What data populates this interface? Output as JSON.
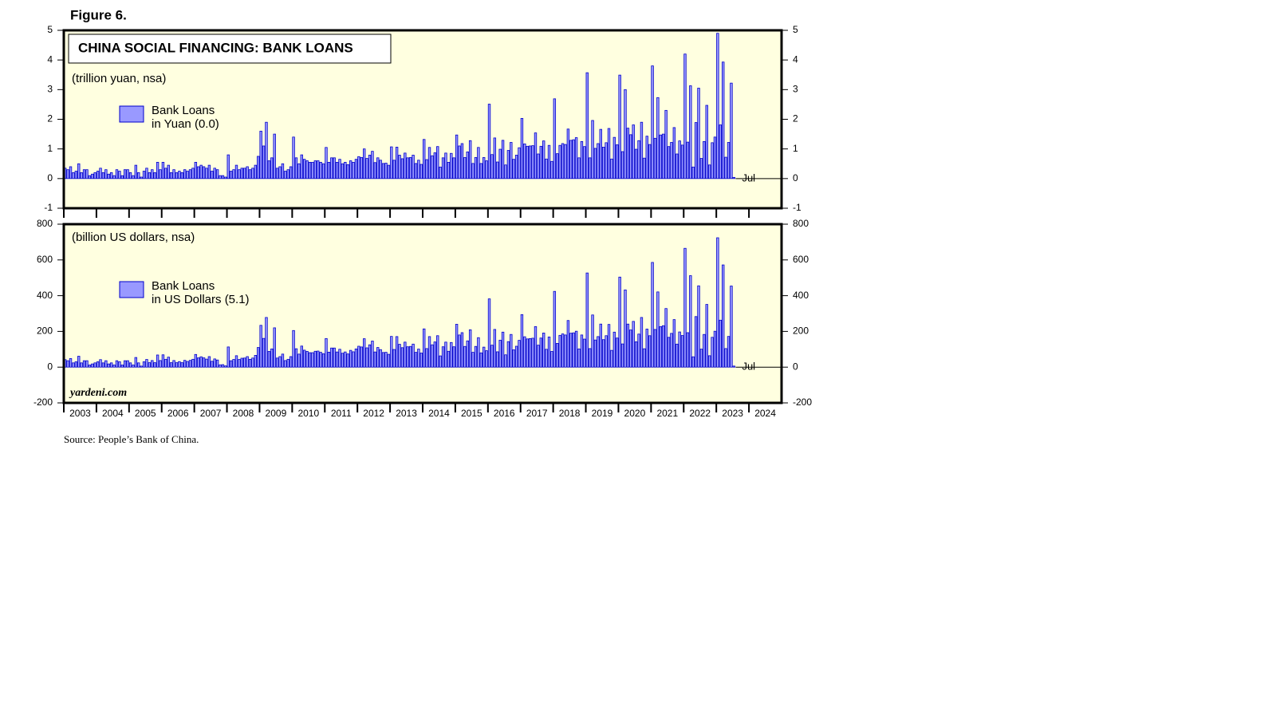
{
  "figure": "Figure 6.",
  "source": "Source: People’s Bank of China.",
  "chart_data": [
    {
      "type": "bar",
      "title": "CHINA SOCIAL FINANCING: BANK LOANS",
      "subtitle": "(trillion yuan, nsa)",
      "annotation": "Jul",
      "xlim": [
        "2003-01",
        "2024-12"
      ],
      "ylim": [
        -1,
        5
      ],
      "yticks": [
        -1,
        0,
        1,
        2,
        3,
        4,
        5
      ],
      "x": [
        "2003-01",
        "2003-02",
        "2003-03",
        "2003-04",
        "2003-05",
        "2003-06",
        "2003-07",
        "2003-08",
        "2003-09",
        "2003-10",
        "2003-11",
        "2003-12",
        "2004-01",
        "2004-02",
        "2004-03",
        "2004-04",
        "2004-05",
        "2004-06",
        "2004-07",
        "2004-08",
        "2004-09",
        "2004-10",
        "2004-11",
        "2004-12",
        "2005-01",
        "2005-02",
        "2005-03",
        "2005-04",
        "2005-05",
        "2005-06",
        "2005-07",
        "2005-08",
        "2005-09",
        "2005-10",
        "2005-11",
        "2005-12",
        "2006-01",
        "2006-02",
        "2006-03",
        "2006-04",
        "2006-05",
        "2006-06",
        "2006-07",
        "2006-08",
        "2006-09",
        "2006-10",
        "2006-11",
        "2006-12",
        "2007-01",
        "2007-02",
        "2007-03",
        "2007-04",
        "2007-05",
        "2007-06",
        "2007-07",
        "2007-08",
        "2007-09",
        "2007-10",
        "2007-11",
        "2007-12",
        "2008-01",
        "2008-02",
        "2008-03",
        "2008-04",
        "2008-05",
        "2008-06",
        "2008-07",
        "2008-08",
        "2008-09",
        "2008-10",
        "2008-11",
        "2008-12",
        "2009-01",
        "2009-02",
        "2009-03",
        "2009-04",
        "2009-05",
        "2009-06",
        "2009-07",
        "2009-08",
        "2009-09",
        "2009-10",
        "2009-11",
        "2009-12",
        "2010-01",
        "2010-02",
        "2010-03",
        "2010-04",
        "2010-05",
        "2010-06",
        "2010-07",
        "2010-08",
        "2010-09",
        "2010-10",
        "2010-11",
        "2010-12",
        "2011-01",
        "2011-02",
        "2011-03",
        "2011-04",
        "2011-05",
        "2011-06",
        "2011-07",
        "2011-08",
        "2011-09",
        "2011-10",
        "2011-11",
        "2011-12",
        "2012-01",
        "2012-02",
        "2012-03",
        "2012-04",
        "2012-05",
        "2012-06",
        "2012-07",
        "2012-08",
        "2012-09",
        "2012-10",
        "2012-11",
        "2012-12",
        "2013-01",
        "2013-02",
        "2013-03",
        "2013-04",
        "2013-05",
        "2013-06",
        "2013-07",
        "2013-08",
        "2013-09",
        "2013-10",
        "2013-11",
        "2013-12",
        "2014-01",
        "2014-02",
        "2014-03",
        "2014-04",
        "2014-05",
        "2014-06",
        "2014-07",
        "2014-08",
        "2014-09",
        "2014-10",
        "2014-11",
        "2014-12",
        "2015-01",
        "2015-02",
        "2015-03",
        "2015-04",
        "2015-05",
        "2015-06",
        "2015-07",
        "2015-08",
        "2015-09",
        "2015-10",
        "2015-11",
        "2015-12",
        "2016-01",
        "2016-02",
        "2016-03",
        "2016-04",
        "2016-05",
        "2016-06",
        "2016-07",
        "2016-08",
        "2016-09",
        "2016-10",
        "2016-11",
        "2016-12",
        "2017-01",
        "2017-02",
        "2017-03",
        "2017-04",
        "2017-05",
        "2017-06",
        "2017-07",
        "2017-08",
        "2017-09",
        "2017-10",
        "2017-11",
        "2017-12",
        "2018-01",
        "2018-02",
        "2018-03",
        "2018-04",
        "2018-05",
        "2018-06",
        "2018-07",
        "2018-08",
        "2018-09",
        "2018-10",
        "2018-11",
        "2018-12",
        "2019-01",
        "2019-02",
        "2019-03",
        "2019-04",
        "2019-05",
        "2019-06",
        "2019-07",
        "2019-08",
        "2019-09",
        "2019-10",
        "2019-11",
        "2019-12",
        "2020-01",
        "2020-02",
        "2020-03",
        "2020-04",
        "2020-05",
        "2020-06",
        "2020-07",
        "2020-08",
        "2020-09",
        "2020-10",
        "2020-11",
        "2020-12",
        "2021-01",
        "2021-02",
        "2021-03",
        "2021-04",
        "2021-05",
        "2021-06",
        "2021-07",
        "2021-08",
        "2021-09",
        "2021-10",
        "2021-11",
        "2021-12",
        "2022-01",
        "2022-02",
        "2022-03",
        "2022-04",
        "2022-05",
        "2022-06",
        "2022-07",
        "2022-08",
        "2022-09",
        "2022-10",
        "2022-11",
        "2022-12",
        "2023-01",
        "2023-02",
        "2023-03",
        "2023-04",
        "2023-05",
        "2023-06",
        "2023-07"
      ],
      "series": [
        {
          "name": "Bank Loans\nin Yuan (0.0)",
          "color": "#9999ff",
          "edgecolor": "#0000cc",
          "values": [
            0.35,
            0.3,
            0.4,
            0.2,
            0.25,
            0.5,
            0.2,
            0.3,
            0.3,
            0.1,
            0.15,
            0.2,
            0.25,
            0.35,
            0.2,
            0.3,
            0.15,
            0.2,
            0.1,
            0.3,
            0.25,
            0.1,
            0.3,
            0.3,
            0.2,
            0.1,
            0.45,
            0.2,
            0.05,
            0.25,
            0.35,
            0.2,
            0.3,
            0.2,
            0.55,
            0.3,
            0.55,
            0.35,
            0.45,
            0.2,
            0.3,
            0.2,
            0.25,
            0.2,
            0.3,
            0.25,
            0.3,
            0.35,
            0.55,
            0.4,
            0.45,
            0.4,
            0.35,
            0.45,
            0.25,
            0.35,
            0.3,
            0.1,
            0.1,
            0.05,
            0.8,
            0.25,
            0.3,
            0.45,
            0.3,
            0.35,
            0.35,
            0.4,
            0.3,
            0.35,
            0.45,
            0.75,
            1.6,
            1.1,
            1.9,
            0.6,
            0.7,
            1.5,
            0.35,
            0.4,
            0.5,
            0.25,
            0.3,
            0.4,
            1.4,
            0.7,
            0.5,
            0.8,
            0.65,
            0.6,
            0.55,
            0.55,
            0.6,
            0.6,
            0.55,
            0.5,
            1.05,
            0.55,
            0.7,
            0.7,
            0.55,
            0.65,
            0.5,
            0.55,
            0.47,
            0.6,
            0.55,
            0.65,
            0.74,
            0.71,
            1.0,
            0.68,
            0.79,
            0.92,
            0.54,
            0.7,
            0.62,
            0.51,
            0.52,
            0.45,
            1.07,
            0.62,
            1.06,
            0.79,
            0.67,
            0.86,
            0.7,
            0.71,
            0.79,
            0.51,
            0.62,
            0.48,
            1.32,
            0.64,
            1.05,
            0.77,
            0.87,
            1.08,
            0.39,
            0.7,
            0.86,
            0.55,
            0.85,
            0.7,
            1.47,
            1.1,
            1.18,
            0.71,
            0.9,
            1.28,
            0.51,
            0.71,
            1.05,
            0.51,
            0.71,
            0.6,
            2.51,
            0.81,
            1.37,
            0.56,
            0.99,
            1.29,
            0.46,
            0.95,
            1.22,
            0.65,
            0.79,
            1.04,
            2.03,
            1.17,
            1.09,
            1.1,
            1.11,
            1.54,
            0.83,
            1.09,
            1.27,
            0.66,
            1.12,
            0.58,
            2.69,
            0.84,
            1.12,
            1.18,
            1.15,
            1.67,
            1.29,
            1.31,
            1.38,
            0.7,
            1.25,
            1.08,
            3.57,
            0.7,
            1.96,
            1.02,
            1.18,
            1.66,
            1.06,
            1.21,
            1.69,
            0.66,
            1.39,
            1.14,
            3.49,
            0.91,
            3.0,
            1.7,
            1.48,
            1.81,
            0.99,
            1.28,
            1.9,
            0.69,
            1.43,
            1.15,
            3.8,
            1.36,
            2.73,
            1.47,
            1.5,
            2.3,
            1.08,
            1.22,
            1.72,
            0.83,
            1.27,
            1.13,
            4.2,
            1.23,
            3.13,
            0.39,
            1.89,
            3.05,
            0.68,
            1.25,
            2.47,
            0.46,
            1.21,
            1.4,
            4.9,
            1.81,
            3.93,
            0.72,
            1.22,
            3.22,
            0.04
          ]
        }
      ]
    },
    {
      "type": "bar",
      "subtitle": "(billion US dollars, nsa)",
      "annotation": "Jul",
      "credit": "yardeni.com",
      "xlim": [
        "2003-01",
        "2024-12"
      ],
      "xticks": [
        2003,
        2004,
        2005,
        2006,
        2007,
        2008,
        2009,
        2010,
        2011,
        2012,
        2013,
        2014,
        2015,
        2016,
        2017,
        2018,
        2019,
        2020,
        2021,
        2022,
        2023,
        2024
      ],
      "ylim": [
        -200,
        800
      ],
      "yticks": [
        -200,
        0,
        200,
        400,
        600,
        800
      ],
      "x": [
        "2003-01",
        "2003-02",
        "2003-03",
        "2003-04",
        "2003-05",
        "2003-06",
        "2003-07",
        "2003-08",
        "2003-09",
        "2003-10",
        "2003-11",
        "2003-12",
        "2004-01",
        "2004-02",
        "2004-03",
        "2004-04",
        "2004-05",
        "2004-06",
        "2004-07",
        "2004-08",
        "2004-09",
        "2004-10",
        "2004-11",
        "2004-12",
        "2005-01",
        "2005-02",
        "2005-03",
        "2005-04",
        "2005-05",
        "2005-06",
        "2005-07",
        "2005-08",
        "2005-09",
        "2005-10",
        "2005-11",
        "2005-12",
        "2006-01",
        "2006-02",
        "2006-03",
        "2006-04",
        "2006-05",
        "2006-06",
        "2006-07",
        "2006-08",
        "2006-09",
        "2006-10",
        "2006-11",
        "2006-12",
        "2007-01",
        "2007-02",
        "2007-03",
        "2007-04",
        "2007-05",
        "2007-06",
        "2007-07",
        "2007-08",
        "2007-09",
        "2007-10",
        "2007-11",
        "2007-12",
        "2008-01",
        "2008-02",
        "2008-03",
        "2008-04",
        "2008-05",
        "2008-06",
        "2008-07",
        "2008-08",
        "2008-09",
        "2008-10",
        "2008-11",
        "2008-12",
        "2009-01",
        "2009-02",
        "2009-03",
        "2009-04",
        "2009-05",
        "2009-06",
        "2009-07",
        "2009-08",
        "2009-09",
        "2009-10",
        "2009-11",
        "2009-12",
        "2010-01",
        "2010-02",
        "2010-03",
        "2010-04",
        "2010-05",
        "2010-06",
        "2010-07",
        "2010-08",
        "2010-09",
        "2010-10",
        "2010-11",
        "2010-12",
        "2011-01",
        "2011-02",
        "2011-03",
        "2011-04",
        "2011-05",
        "2011-06",
        "2011-07",
        "2011-08",
        "2011-09",
        "2011-10",
        "2011-11",
        "2011-12",
        "2012-01",
        "2012-02",
        "2012-03",
        "2012-04",
        "2012-05",
        "2012-06",
        "2012-07",
        "2012-08",
        "2012-09",
        "2012-10",
        "2012-11",
        "2012-12",
        "2013-01",
        "2013-02",
        "2013-03",
        "2013-04",
        "2013-05",
        "2013-06",
        "2013-07",
        "2013-08",
        "2013-09",
        "2013-10",
        "2013-11",
        "2013-12",
        "2014-01",
        "2014-02",
        "2014-03",
        "2014-04",
        "2014-05",
        "2014-06",
        "2014-07",
        "2014-08",
        "2014-09",
        "2014-10",
        "2014-11",
        "2014-12",
        "2015-01",
        "2015-02",
        "2015-03",
        "2015-04",
        "2015-05",
        "2015-06",
        "2015-07",
        "2015-08",
        "2015-09",
        "2015-10",
        "2015-11",
        "2015-12",
        "2016-01",
        "2016-02",
        "2016-03",
        "2016-04",
        "2016-05",
        "2016-06",
        "2016-07",
        "2016-08",
        "2016-09",
        "2016-10",
        "2016-11",
        "2016-12",
        "2017-01",
        "2017-02",
        "2017-03",
        "2017-04",
        "2017-05",
        "2017-06",
        "2017-07",
        "2017-08",
        "2017-09",
        "2017-10",
        "2017-11",
        "2017-12",
        "2018-01",
        "2018-02",
        "2018-03",
        "2018-04",
        "2018-05",
        "2018-06",
        "2018-07",
        "2018-08",
        "2018-09",
        "2018-10",
        "2018-11",
        "2018-12",
        "2019-01",
        "2019-02",
        "2019-03",
        "2019-04",
        "2019-05",
        "2019-06",
        "2019-07",
        "2019-08",
        "2019-09",
        "2019-10",
        "2019-11",
        "2019-12",
        "2020-01",
        "2020-02",
        "2020-03",
        "2020-04",
        "2020-05",
        "2020-06",
        "2020-07",
        "2020-08",
        "2020-09",
        "2020-10",
        "2020-11",
        "2020-12",
        "2021-01",
        "2021-02",
        "2021-03",
        "2021-04",
        "2021-05",
        "2021-06",
        "2021-07",
        "2021-08",
        "2021-09",
        "2021-10",
        "2021-11",
        "2021-12",
        "2022-01",
        "2022-02",
        "2022-03",
        "2022-04",
        "2022-05",
        "2022-06",
        "2022-07",
        "2022-08",
        "2022-09",
        "2022-10",
        "2022-11",
        "2022-12",
        "2023-01",
        "2023-02",
        "2023-03",
        "2023-04",
        "2023-05",
        "2023-06",
        "2023-07"
      ],
      "series": [
        {
          "name": "Bank Loans\nin US Dollars (5.1)",
          "color": "#9999ff",
          "edgecolor": "#0000cc",
          "values": [
            42,
            36,
            48,
            24,
            30,
            61,
            24,
            36,
            36,
            12,
            18,
            24,
            30,
            42,
            24,
            36,
            18,
            24,
            12,
            36,
            30,
            12,
            36,
            36,
            24,
            12,
            54,
            24,
            6,
            30,
            43,
            25,
            37,
            25,
            68,
            37,
            69,
            44,
            56,
            25,
            37,
            25,
            31,
            25,
            38,
            32,
            38,
            44,
            71,
            52,
            58,
            52,
            45,
            59,
            33,
            46,
            40,
            13,
            14,
            7,
            113,
            36,
            43,
            64,
            43,
            50,
            51,
            59,
            44,
            51,
            66,
            110,
            234,
            161,
            278,
            88,
            102,
            220,
            51,
            59,
            73,
            37,
            44,
            59,
            205,
            103,
            73,
            118,
            95,
            88,
            81,
            81,
            89,
            90,
            83,
            75,
            160,
            84,
            107,
            107,
            85,
            100,
            78,
            85,
            74,
            94,
            86,
            102,
            117,
            113,
            159,
            108,
            125,
            146,
            85,
            110,
            98,
            82,
            83,
            72,
            172,
            99,
            171,
            128,
            109,
            140,
            114,
            116,
            129,
            83,
            101,
            79,
            214,
            104,
            171,
            125,
            141,
            176,
            63,
            114,
            140,
            89,
            138,
            114,
            240,
            180,
            193,
            116,
            147,
            209,
            83,
            116,
            165,
            80,
            112,
            92,
            382,
            123,
            211,
            86,
            151,
            196,
            69,
            143,
            183,
            97,
            117,
            150,
            294,
            170,
            158,
            160,
            162,
            227,
            123,
            163,
            191,
            100,
            169,
            88,
            424,
            133,
            178,
            186,
            180,
            261,
            190,
            192,
            201,
            102,
            180,
            157,
            527,
            104,
            292,
            152,
            171,
            241,
            154,
            176,
            239,
            94,
            196,
            163,
            504,
            130,
            432,
            241,
            208,
            256,
            142,
            185,
            278,
            103,
            213,
            176,
            586,
            211,
            421,
            227,
            232,
            328,
            167,
            189,
            266,
            129,
            197,
            177,
            665,
            193,
            512,
            58,
            283,
            455,
            101,
            183,
            351,
            64,
            167,
            201,
            724,
            263,
            572,
            104,
            172,
            454,
            6
          ]
        }
      ]
    }
  ]
}
